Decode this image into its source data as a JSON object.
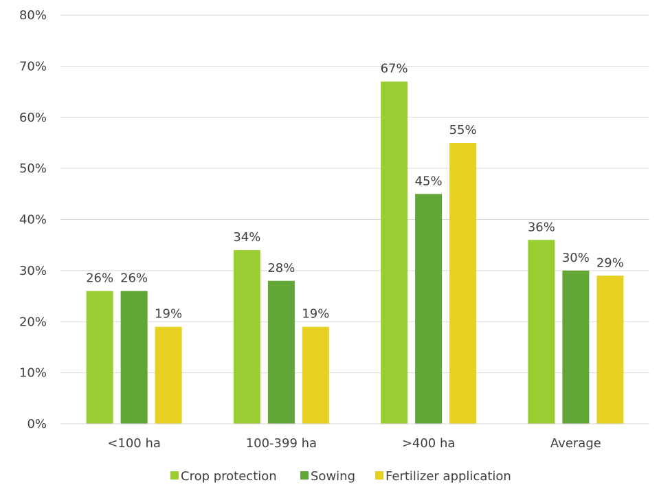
{
  "chart_data": {
    "type": "bar",
    "categories": [
      "<100 ha",
      "100-399 ha",
      ">400 ha",
      "Average"
    ],
    "series": [
      {
        "name": "Crop protection",
        "color": "#9ACD32",
        "values": [
          26,
          34,
          67,
          36
        ]
      },
      {
        "name": "Sowing",
        "color": "#62A637",
        "values": [
          26,
          28,
          45,
          30
        ]
      },
      {
        "name": "Fertilizer application",
        "color": "#E6D021",
        "values": [
          19,
          19,
          55,
          29
        ]
      }
    ],
    "value_suffix": "%",
    "y_ticks": [
      "0%",
      "10%",
      "20%",
      "30%",
      "40%",
      "50%",
      "60%",
      "70%",
      "80%"
    ],
    "ylim": [
      0,
      80
    ],
    "grid": true,
    "data_labels": true,
    "legend_position": "bottom"
  }
}
